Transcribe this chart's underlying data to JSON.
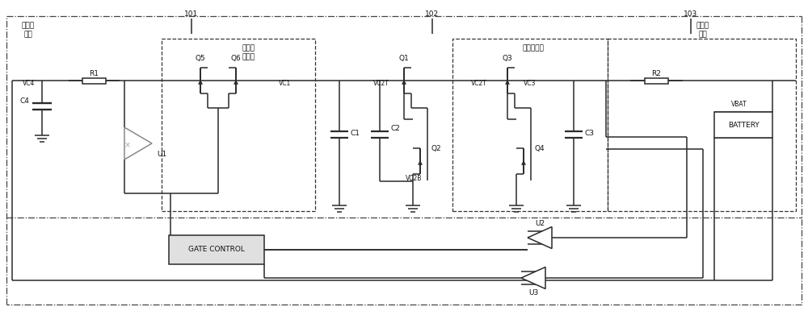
{
  "fig_width": 10.0,
  "fig_height": 3.91,
  "bg_color": "#ffffff",
  "line_color": "#2a2a2a",
  "labels": {
    "input_main1": "输入主",
    "input_main2": "电路",
    "vc4": "VC4",
    "output_main1": "输出主",
    "output_main2": "电路",
    "first_input1": "第一端",
    "first_input2": "输入端",
    "second_output": "第二输出端",
    "t101": "101",
    "t102": "102",
    "t103": "103",
    "R1": "R1",
    "R2": "R2",
    "Q1": "Q1",
    "Q2": "Q2",
    "Q3": "Q3",
    "Q4": "Q4",
    "Q5": "Q5",
    "Q6": "Q6",
    "C1": "C1",
    "C2": "C2",
    "C3": "C3",
    "C4": "C4",
    "U1": "U1",
    "U2": "U2",
    "U3": "U3",
    "VC1": "VC1",
    "VC2T": "VC2T",
    "VC2B": "VC2B",
    "VC3": "VC3",
    "VBAT": "VBAT",
    "BATTERY": "BATTERY",
    "GATE_CONTROL": "GATE CONTROL"
  }
}
